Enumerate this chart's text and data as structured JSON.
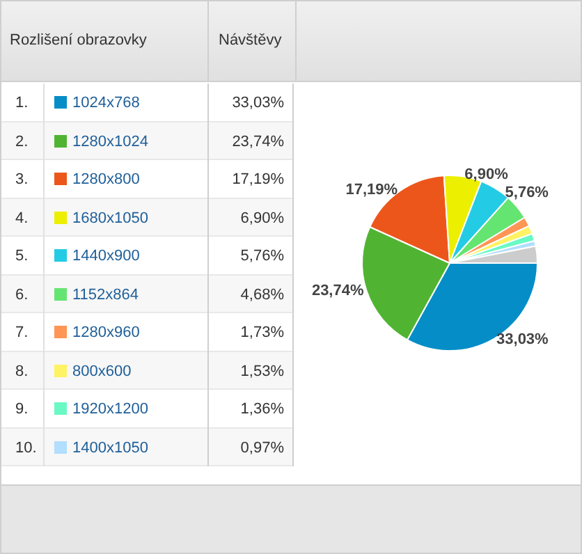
{
  "chart_data": {
    "type": "pie",
    "legend_title": "Rozlišení obrazovky",
    "ylabel": "Návštěvy",
    "legend": "left",
    "annotations": [
      "1.",
      "2.",
      "3.",
      "4.",
      "5.",
      "6.",
      "7.",
      "8.",
      "9.",
      "10."
    ],
    "categories": [
      "1024x768",
      "1280x1024",
      "1280x800",
      "1680x1050",
      "1440x900",
      "1152x864",
      "1280x960",
      "800x600",
      "1920x1200",
      "1400x1050",
      null
    ],
    "values": [
      33.03,
      23.74,
      17.19,
      6.9,
      5.76,
      4.68,
      1.73,
      1.53,
      1.36,
      0.97,
      3.11
    ],
    "colors": [
      "#058dc7",
      "#50b432",
      "#ed561b",
      "#edef00",
      "#24cbe5",
      "#64e572",
      "#ff9655",
      "#fff263",
      "#6af9c4",
      "#b2deff",
      "#cccccc"
    ],
    "value_labels": [
      "33,03%",
      "23,74%",
      "17,19%",
      "6,90%",
      "5,76%",
      "4,68%",
      "1,73%",
      "1,53%",
      "1,36%",
      "0,97%",
      null
    ]
  }
}
